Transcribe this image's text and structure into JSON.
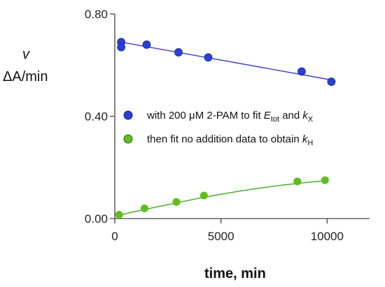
{
  "chart_data": {
    "type": "scatter",
    "xlabel": "time, min",
    "ylabel_line1": "v",
    "ylabel_line2": "ΔA/min",
    "xlim": [
      0,
      12000
    ],
    "ylim": [
      0,
      0.8
    ],
    "xticks": [
      0,
      5000,
      10000
    ],
    "xtick_labels": [
      "0",
      "5000",
      "10000"
    ],
    "yticks": [
      0.0,
      0.4,
      0.8
    ],
    "ytick_labels": [
      "0.00",
      "0.40",
      "0.80"
    ],
    "grid": false,
    "legend_position": "center-right",
    "series": [
      {
        "name": "with 200 μM 2-PAM to fit E_tot and k_X",
        "legend": {
          "prefix": "with 200 ",
          "mu": "μ",
          "mid": "M 2-PAM to fit ",
          "var1": "E",
          "sub1": "tot",
          "and": " and ",
          "var2": "k",
          "sub2": "X"
        },
        "color": "#2a3fd6",
        "line_color": "#3a3adb",
        "fit": "linear",
        "points": [
          {
            "x": 300,
            "y": 0.69
          },
          {
            "x": 300,
            "y": 0.67
          },
          {
            "x": 1500,
            "y": 0.68
          },
          {
            "x": 3000,
            "y": 0.65
          },
          {
            "x": 4400,
            "y": 0.63
          },
          {
            "x": 8800,
            "y": 0.575
          },
          {
            "x": 10200,
            "y": 0.535
          }
        ],
        "fit_line": [
          {
            "x": 300,
            "y": 0.69
          },
          {
            "x": 10200,
            "y": 0.542
          }
        ]
      },
      {
        "name": "then fit no addition data to obtain k_H",
        "legend": {
          "prefix": "then fit no addition data to obtain ",
          "var1": "k",
          "sub1": "H"
        },
        "color": "#5fbd1e",
        "line_color": "#3aaa1c",
        "fit": "curve",
        "points": [
          {
            "x": 200,
            "y": 0.015
          },
          {
            "x": 1400,
            "y": 0.04
          },
          {
            "x": 2900,
            "y": 0.065
          },
          {
            "x": 4200,
            "y": 0.09
          },
          {
            "x": 8600,
            "y": 0.145
          },
          {
            "x": 9900,
            "y": 0.15
          }
        ],
        "fit_curve": [
          {
            "x": 200,
            "y": 0.013
          },
          {
            "x": 1000,
            "y": 0.028
          },
          {
            "x": 2000,
            "y": 0.046
          },
          {
            "x": 3000,
            "y": 0.063
          },
          {
            "x": 4000,
            "y": 0.08
          },
          {
            "x": 5000,
            "y": 0.095
          },
          {
            "x": 6000,
            "y": 0.109
          },
          {
            "x": 7000,
            "y": 0.121
          },
          {
            "x": 8000,
            "y": 0.132
          },
          {
            "x": 9000,
            "y": 0.141
          },
          {
            "x": 10000,
            "y": 0.149
          }
        ]
      }
    ]
  }
}
